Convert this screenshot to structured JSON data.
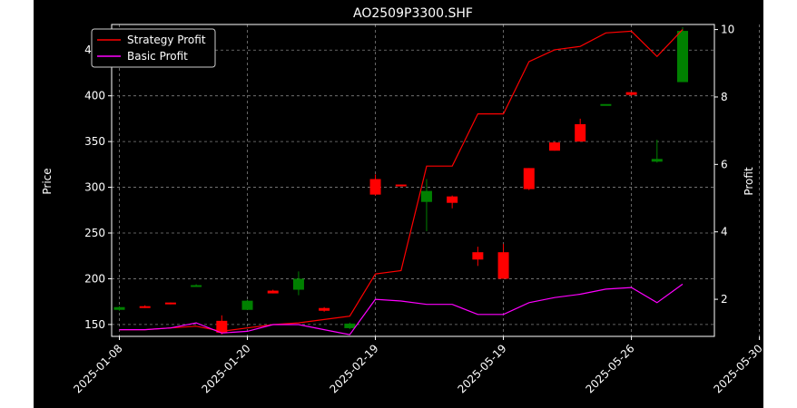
{
  "chart_data": {
    "type": "candlestick",
    "title": "AO2509P3300.SHF",
    "ylabel": "Price",
    "y2label": "Profit",
    "ylim": [
      137,
      478
    ],
    "y2lim": [
      0.9,
      10.15
    ],
    "yticks": [
      150,
      200,
      250,
      300,
      350,
      400,
      450
    ],
    "y2ticks": [
      2,
      4,
      6,
      8,
      10
    ],
    "xtick_labels": [
      "2025-01-08",
      "2025-01-20",
      "2025-02-19",
      "2025-05-19",
      "2025-05-26",
      "2025-05-30"
    ],
    "xtick_index": [
      0,
      5,
      10,
      15,
      20,
      25
    ],
    "grid": true,
    "legend": {
      "position": "top-left",
      "entries": [
        "Strategy Profit",
        "Basic Profit"
      ]
    },
    "colors": {
      "up": "#008000",
      "down": "#ff0000",
      "strategy": "#ff0000",
      "basic": "#ff00ff",
      "background": "#000000",
      "figure_bg": "#000000",
      "axes": "#ffffff",
      "grid": "#808080"
    },
    "candles": [
      {
        "open": 166,
        "close": 169,
        "high": 170,
        "low": 165
      },
      {
        "open": 170,
        "close": 169,
        "high": 171,
        "low": 168
      },
      {
        "open": 174,
        "close": 173,
        "high": 174,
        "low": 172
      },
      {
        "open": 193,
        "close": 193,
        "high": 194,
        "low": 192
      },
      {
        "open": 154,
        "close": 141,
        "high": 160,
        "low": 139
      },
      {
        "open": 166,
        "close": 176,
        "high": 177,
        "low": 166
      },
      {
        "open": 187,
        "close": 184,
        "high": 188,
        "low": 184
      },
      {
        "open": 188,
        "close": 200,
        "high": 208,
        "low": 182
      },
      {
        "open": 168,
        "close": 165,
        "high": 169,
        "low": 164
      },
      {
        "open": 146,
        "close": 151,
        "high": 152,
        "low": 145
      },
      {
        "open": 309,
        "close": 292,
        "high": 314,
        "low": 291
      },
      {
        "open": 303,
        "close": 302,
        "high": 303,
        "low": 302
      },
      {
        "open": 284,
        "close": 296,
        "high": 309,
        "low": 252
      },
      {
        "open": 290,
        "close": 283,
        "high": 291,
        "low": 277
      },
      {
        "open": 229,
        "close": 221,
        "high": 235,
        "low": 214
      },
      {
        "open": 229,
        "close": 200,
        "high": 238,
        "low": 200
      },
      {
        "open": 321,
        "close": 298,
        "high": 321,
        "low": 297
      },
      {
        "open": 349,
        "close": 340,
        "high": 350,
        "low": 340
      },
      {
        "open": 369,
        "close": 350,
        "high": 375,
        "low": 350
      },
      {
        "open": 391,
        "close": 391,
        "high": 391,
        "low": 391
      },
      {
        "open": 404,
        "close": 401,
        "high": 404,
        "low": 400
      },
      {
        "open": 328,
        "close": 331,
        "high": 352,
        "low": 327
      },
      {
        "open": 415,
        "close": 471,
        "high": 475,
        "low": 415
      }
    ],
    "series": [
      {
        "name": "Strategy Profit",
        "values": [
          1.1,
          1.1,
          1.15,
          1.2,
          1.05,
          1.15,
          1.25,
          1.3,
          1.4,
          1.5,
          2.75,
          2.85,
          5.95,
          5.95,
          7.5,
          7.5,
          9.05,
          9.4,
          9.5,
          9.9,
          9.95,
          9.2,
          10.0
        ]
      },
      {
        "name": "Basic Profit",
        "values": [
          1.1,
          1.1,
          1.15,
          1.3,
          1.0,
          1.05,
          1.25,
          1.25,
          1.1,
          0.95,
          2.0,
          1.95,
          1.85,
          1.85,
          1.55,
          1.55,
          1.9,
          2.05,
          2.15,
          2.3,
          2.35,
          1.9,
          2.45
        ]
      }
    ]
  }
}
